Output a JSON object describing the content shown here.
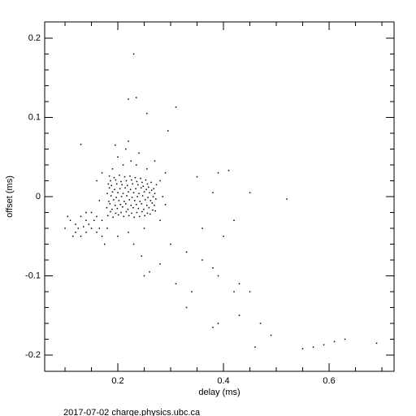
{
  "chart_data": {
    "type": "scatter",
    "xlabel": "delay (ms)",
    "ylabel": "offset (ms)",
    "footer": "2017-07-02 charge.physics.ubc.ca",
    "color": "#000000",
    "xlim": [
      0.0615,
      0.723
    ],
    "ylim": [
      -0.2205,
      0.2205
    ],
    "xticks": [
      0.2,
      0.4,
      0.6
    ],
    "yticks": [
      -0.2,
      -0.1,
      0,
      0.1,
      0.2
    ],
    "xminor": [
      0.1,
      0.15,
      0.25,
      0.3,
      0.35,
      0.45,
      0.5,
      0.55,
      0.65,
      0.7
    ],
    "yminor": [
      -0.18,
      -0.16,
      -0.14,
      -0.12,
      -0.08,
      -0.06,
      -0.04,
      -0.02,
      0.02,
      0.04,
      0.06,
      0.08,
      0.12,
      0.14,
      0.16,
      0.18
    ],
    "x": [
      0.181,
      0.179,
      0.183,
      0.18,
      0.182,
      0.184,
      0.191,
      0.189,
      0.192,
      0.19,
      0.188,
      0.193,
      0.201,
      0.199,
      0.202,
      0.2,
      0.198,
      0.203,
      0.211,
      0.209,
      0.212,
      0.21,
      0.208,
      0.213,
      0.221,
      0.219,
      0.222,
      0.22,
      0.218,
      0.223,
      0.231,
      0.229,
      0.232,
      0.23,
      0.228,
      0.233,
      0.241,
      0.239,
      0.242,
      0.24,
      0.238,
      0.243,
      0.251,
      0.249,
      0.252,
      0.25,
      0.248,
      0.253,
      0.261,
      0.259,
      0.262,
      0.26,
      0.258,
      0.263,
      0.271,
      0.269,
      0.272,
      0.27,
      0.268,
      0.273,
      0.186,
      0.185,
      0.187,
      0.184,
      0.186,
      0.196,
      0.195,
      0.197,
      0.194,
      0.196,
      0.206,
      0.205,
      0.207,
      0.204,
      0.206,
      0.216,
      0.215,
      0.217,
      0.214,
      0.216,
      0.226,
      0.225,
      0.227,
      0.224,
      0.226,
      0.236,
      0.235,
      0.237,
      0.234,
      0.236,
      0.246,
      0.245,
      0.247,
      0.244,
      0.246,
      0.256,
      0.255,
      0.257,
      0.254,
      0.256,
      0.266,
      0.265,
      0.267,
      0.264,
      0.21,
      0.225,
      0.2,
      0.235,
      0.215,
      0.24,
      0.19,
      0.255,
      0.28,
      0.285,
      0.29,
      0.28,
      0.25,
      0.22,
      0.2,
      0.23,
      0.245,
      0.17,
      0.16,
      0.165,
      0.29,
      0.22,
      0.195,
      0.27,
      0.17,
      0.16,
      0.15,
      0.14,
      0.13,
      0.12,
      0.11,
      0.1,
      0.15,
      0.14,
      0.13,
      0.16,
      0.17,
      0.12,
      0.105,
      0.18,
      0.165,
      0.145,
      0.125,
      0.135,
      0.155,
      0.115,
      0.175,
      0.14,
      0.23,
      0.22,
      0.235,
      0.31,
      0.255,
      0.295,
      0.13,
      0.35,
      0.39,
      0.41,
      0.38,
      0.45,
      0.52,
      0.42,
      0.3,
      0.33,
      0.36,
      0.38,
      0.39,
      0.31,
      0.34,
      0.42,
      0.45,
      0.33,
      0.43,
      0.47,
      0.38,
      0.39,
      0.46,
      0.49,
      0.55,
      0.57,
      0.59,
      0.61,
      0.63,
      0.69,
      0.28,
      0.26,
      0.25,
      0.36,
      0.4,
      0.43
    ],
    "y": [
      -0.024,
      -0.014,
      -0.006,
      0.004,
      0.016,
      0.026,
      -0.026,
      -0.016,
      -0.004,
      0.006,
      0.014,
      0.024,
      -0.023,
      -0.015,
      -0.005,
      0.005,
      0.016,
      0.027,
      -0.025,
      -0.013,
      -0.006,
      0.004,
      0.015,
      0.025,
      -0.024,
      -0.016,
      -0.004,
      0.006,
      0.014,
      0.026,
      -0.026,
      -0.014,
      -0.005,
      0.005,
      0.016,
      0.024,
      -0.025,
      -0.015,
      -0.006,
      0.004,
      0.015,
      0.023,
      -0.024,
      -0.016,
      -0.004,
      0.006,
      0.013,
      0.021,
      -0.022,
      -0.014,
      -0.005,
      0.005,
      0.012,
      0.018,
      -0.018,
      -0.011,
      -0.003,
      0.004,
      0.01,
      0.015,
      -0.019,
      -0.009,
      0.001,
      0.011,
      0.02,
      -0.021,
      -0.011,
      -0.001,
      0.009,
      0.021,
      -0.02,
      -0.01,
      0.0,
      0.01,
      0.019,
      -0.019,
      -0.009,
      0.001,
      0.011,
      0.02,
      -0.021,
      -0.011,
      -0.001,
      0.009,
      0.021,
      -0.02,
      -0.01,
      0.0,
      0.01,
      0.019,
      -0.019,
      -0.009,
      0.001,
      0.011,
      0.018,
      -0.021,
      -0.011,
      -0.001,
      0.009,
      0.016,
      -0.017,
      -0.008,
      0.0,
      0.008,
      0.04,
      0.045,
      0.05,
      0.04,
      0.06,
      0.055,
      0.035,
      0.035,
      0.02,
      0.0,
      -0.01,
      -0.03,
      -0.04,
      -0.045,
      -0.05,
      -0.06,
      -0.075,
      0.03,
      0.02,
      -0.005,
      0.03,
      0.07,
      0.065,
      0.045,
      -0.03,
      -0.025,
      -0.02,
      -0.03,
      -0.025,
      -0.035,
      -0.03,
      -0.04,
      -0.04,
      -0.045,
      -0.05,
      -0.045,
      -0.05,
      -0.045,
      -0.025,
      -0.04,
      -0.04,
      -0.035,
      -0.04,
      -0.038,
      -0.03,
      -0.05,
      -0.06,
      -0.02,
      0.18,
      0.123,
      0.125,
      0.113,
      0.105,
      0.083,
      0.066,
      0.025,
      0.03,
      0.033,
      0.005,
      0.005,
      -0.003,
      -0.03,
      -0.06,
      -0.07,
      -0.08,
      -0.09,
      -0.1,
      -0.11,
      -0.12,
      -0.12,
      -0.12,
      -0.14,
      -0.15,
      -0.16,
      -0.165,
      -0.16,
      -0.19,
      -0.175,
      -0.192,
      -0.19,
      -0.187,
      -0.183,
      -0.18,
      -0.185,
      -0.085,
      -0.095,
      -0.1,
      -0.04,
      -0.05,
      -0.11
    ]
  }
}
